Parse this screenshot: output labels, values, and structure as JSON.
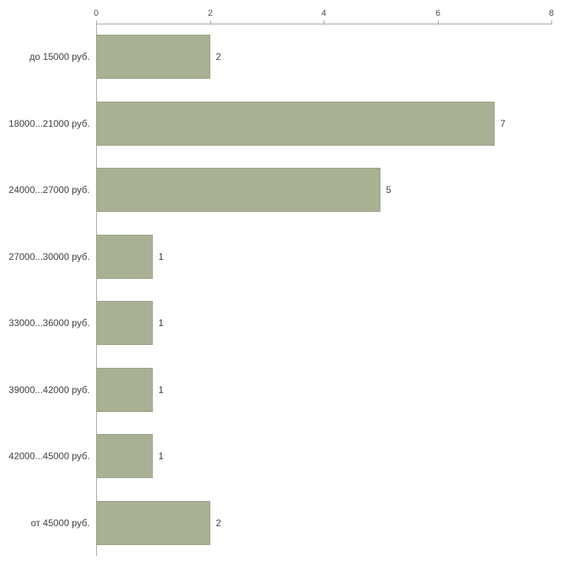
{
  "chart_data": {
    "type": "bar",
    "orientation": "horizontal",
    "categories": [
      "до 15000 руб.",
      "18000...21000 руб.",
      "24000...27000 руб.",
      "27000...30000 руб.",
      "33000...36000 руб.",
      "39000...42000 руб.",
      "42000...45000 руб.",
      "от 45000 руб."
    ],
    "values": [
      2,
      7,
      5,
      1,
      1,
      1,
      1,
      2
    ],
    "x_ticks": [
      "0",
      "2",
      "4",
      "6",
      "8"
    ],
    "xlim": [
      0,
      8
    ],
    "title": "",
    "xlabel": "",
    "ylabel": "",
    "grid": false,
    "legend": false,
    "axis_position": "top",
    "bar_color": "#a8b193",
    "bar_border_color": "#9aa386",
    "axis_color": "#a6a6a6",
    "text_color": "#404040"
  }
}
